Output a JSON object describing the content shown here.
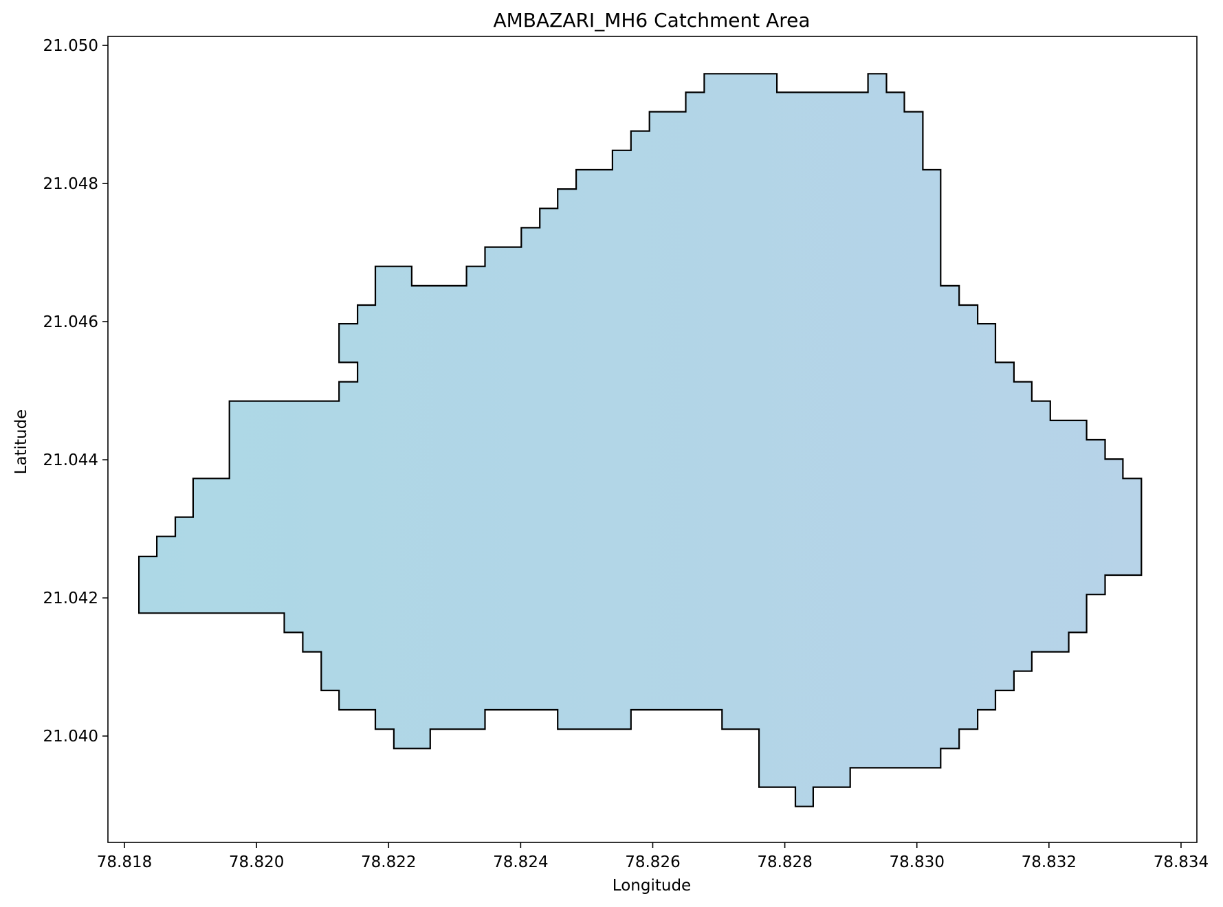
{
  "chart_data": {
    "type": "area",
    "title": "AMBAZARI_MH6 Catchment Area",
    "xlabel": "Longitude",
    "ylabel": "Latitude",
    "xlim": [
      78.81775,
      78.83424
    ],
    "ylim": [
      21.03846,
      21.05013
    ],
    "xticks": [
      78.818,
      78.82,
      78.822,
      78.824,
      78.826,
      78.828,
      78.83,
      78.832,
      78.834
    ],
    "xtick_labels": [
      "78.818",
      "78.820",
      "78.822",
      "78.824",
      "78.826",
      "78.828",
      "78.830",
      "78.832",
      "78.834"
    ],
    "yticks": [
      21.04,
      21.042,
      21.044,
      21.046,
      21.048,
      21.05
    ],
    "ytick_labels": [
      "21.040",
      "21.042",
      "21.044",
      "21.046",
      "21.048",
      "21.050"
    ],
    "grid": false,
    "fill_color_start": "#add8e6",
    "fill_color_end": "#b7d3e8",
    "edge_color": "#000000",
    "series": [
      {
        "polygon": [
          [
            78.81822,
            21.0426
          ],
          [
            78.81849,
            21.0426
          ],
          [
            78.81849,
            21.04289
          ],
          [
            78.81877,
            21.04289
          ],
          [
            78.81877,
            21.04317
          ],
          [
            78.81904,
            21.04317
          ],
          [
            78.81904,
            21.04373
          ],
          [
            78.81959,
            21.04373
          ],
          [
            78.81959,
            21.04485
          ],
          [
            78.82125,
            21.04485
          ],
          [
            78.82125,
            21.04513
          ],
          [
            78.82153,
            21.04513
          ],
          [
            78.82153,
            21.04541
          ],
          [
            78.82125,
            21.04541
          ],
          [
            78.82125,
            21.04597
          ],
          [
            78.82153,
            21.04597
          ],
          [
            78.82153,
            21.04624
          ],
          [
            78.8218,
            21.04624
          ],
          [
            78.8218,
            21.0468
          ],
          [
            78.82235,
            21.0468
          ],
          [
            78.82235,
            21.04652
          ],
          [
            78.82318,
            21.04652
          ],
          [
            78.82318,
            21.0468
          ],
          [
            78.82346,
            21.0468
          ],
          [
            78.82346,
            21.04708
          ],
          [
            78.82401,
            21.04708
          ],
          [
            78.82401,
            21.04736
          ],
          [
            78.82429,
            21.04736
          ],
          [
            78.82429,
            21.04764
          ],
          [
            78.82456,
            21.04764
          ],
          [
            78.82456,
            21.04792
          ],
          [
            78.82484,
            21.04792
          ],
          [
            78.82484,
            21.0482
          ],
          [
            78.82539,
            21.0482
          ],
          [
            78.82539,
            21.04848
          ],
          [
            78.82567,
            21.04848
          ],
          [
            78.82567,
            21.04876
          ],
          [
            78.82595,
            21.04876
          ],
          [
            78.82595,
            21.04904
          ],
          [
            78.8265,
            21.04904
          ],
          [
            78.8265,
            21.04932
          ],
          [
            78.82678,
            21.04932
          ],
          [
            78.82678,
            21.04959
          ],
          [
            78.82788,
            21.04959
          ],
          [
            78.82788,
            21.04932
          ],
          [
            78.82926,
            21.04932
          ],
          [
            78.82926,
            21.04959
          ],
          [
            78.82954,
            21.04959
          ],
          [
            78.82954,
            21.04932
          ],
          [
            78.82981,
            21.04932
          ],
          [
            78.82981,
            21.04904
          ],
          [
            78.83009,
            21.04904
          ],
          [
            78.83009,
            21.0482
          ],
          [
            78.83036,
            21.0482
          ],
          [
            78.83036,
            21.04652
          ],
          [
            78.83064,
            21.04652
          ],
          [
            78.83064,
            21.04624
          ],
          [
            78.83092,
            21.04624
          ],
          [
            78.83092,
            21.04597
          ],
          [
            78.83119,
            21.04597
          ],
          [
            78.83119,
            21.04541
          ],
          [
            78.83147,
            21.04541
          ],
          [
            78.83147,
            21.04513
          ],
          [
            78.83174,
            21.04513
          ],
          [
            78.83174,
            21.04485
          ],
          [
            78.83202,
            21.04485
          ],
          [
            78.83202,
            21.04457
          ],
          [
            78.83257,
            21.04457
          ],
          [
            78.83257,
            21.04429
          ],
          [
            78.83285,
            21.04429
          ],
          [
            78.83285,
            21.04401
          ],
          [
            78.83312,
            21.04401
          ],
          [
            78.83312,
            21.04373
          ],
          [
            78.8334,
            21.04373
          ],
          [
            78.8334,
            21.04233
          ],
          [
            78.83285,
            21.04233
          ],
          [
            78.83285,
            21.04205
          ],
          [
            78.83257,
            21.04205
          ],
          [
            78.83257,
            21.0415
          ],
          [
            78.8323,
            21.0415
          ],
          [
            78.8323,
            21.04122
          ],
          [
            78.83174,
            21.04122
          ],
          [
            78.83174,
            21.04094
          ],
          [
            78.83147,
            21.04094
          ],
          [
            78.83147,
            21.04066
          ],
          [
            78.83119,
            21.04066
          ],
          [
            78.83119,
            21.04038
          ],
          [
            78.83092,
            21.04038
          ],
          [
            78.83092,
            21.0401
          ],
          [
            78.83064,
            21.0401
          ],
          [
            78.83064,
            21.03982
          ],
          [
            78.83036,
            21.03982
          ],
          [
            78.83036,
            21.03954
          ],
          [
            78.82899,
            21.03954
          ],
          [
            78.82899,
            21.03926
          ],
          [
            78.82843,
            21.03926
          ],
          [
            78.82843,
            21.03898
          ],
          [
            78.82816,
            21.03898
          ],
          [
            78.82816,
            21.03926
          ],
          [
            78.82761,
            21.03926
          ],
          [
            78.82761,
            21.0401
          ],
          [
            78.82705,
            21.0401
          ],
          [
            78.82705,
            21.04038
          ],
          [
            78.82567,
            21.04038
          ],
          [
            78.82567,
            21.0401
          ],
          [
            78.82456,
            21.0401
          ],
          [
            78.82456,
            21.04038
          ],
          [
            78.82346,
            21.04038
          ],
          [
            78.82346,
            21.0401
          ],
          [
            78.82263,
            21.0401
          ],
          [
            78.82263,
            21.03982
          ],
          [
            78.82208,
            21.03982
          ],
          [
            78.82208,
            21.0401
          ],
          [
            78.8218,
            21.0401
          ],
          [
            78.8218,
            21.04038
          ],
          [
            78.82125,
            21.04038
          ],
          [
            78.82125,
            21.04066
          ],
          [
            78.82098,
            21.04066
          ],
          [
            78.82098,
            21.04122
          ],
          [
            78.8207,
            21.04122
          ],
          [
            78.8207,
            21.0415
          ],
          [
            78.82042,
            21.0415
          ],
          [
            78.82042,
            21.04178
          ],
          [
            78.81822,
            21.04178
          ]
        ]
      }
    ]
  }
}
